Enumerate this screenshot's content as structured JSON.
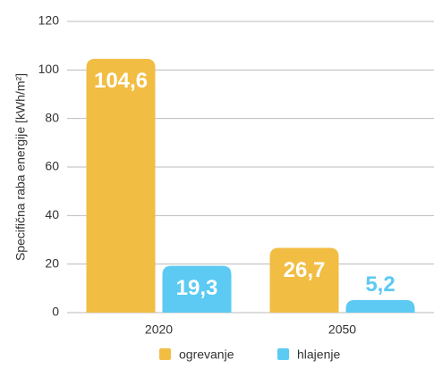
{
  "chart_data": {
    "type": "bar",
    "y_label": "Specifična raba energije [kWh/m²]",
    "categories": [
      "2020",
      "2050"
    ],
    "series": [
      {
        "name": "ogrevanje",
        "color": "#f1bd43",
        "values": [
          104.6,
          26.7
        ],
        "value_labels": [
          "104,6",
          "26,7"
        ]
      },
      {
        "name": "hlajenje",
        "color": "#5ccaf2",
        "values": [
          19.3,
          5.2
        ],
        "value_labels": [
          "19,3",
          "5,2"
        ]
      }
    ],
    "ylim": [
      0,
      120
    ],
    "yticks": [
      0,
      20,
      40,
      60,
      80,
      100,
      120
    ],
    "grid": true
  }
}
